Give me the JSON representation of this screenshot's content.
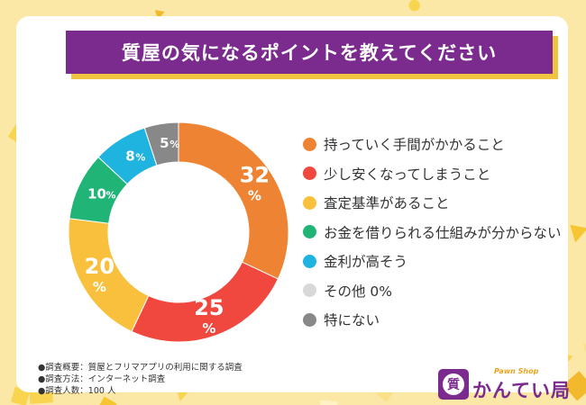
{
  "title": "質屋の気になるポイントを教えてください",
  "chart_data": {
    "type": "pie",
    "title": "質屋の気になるポイントを教えてください",
    "categories": [
      "持っていく手間がかかること",
      "少し安くなってしまうこと",
      "査定基準があること",
      "お金を借りられる仕組みが分からない",
      "金利が高そう",
      "その他 0%",
      "特にない"
    ],
    "values": [
      32,
      25,
      20,
      10,
      8,
      0,
      5
    ],
    "value_labels": [
      "32",
      "25",
      "20",
      "10",
      "8",
      "",
      "5"
    ],
    "unit": "%",
    "colors": [
      "#ee8433",
      "#f0483e",
      "#f9c03d",
      "#20b477",
      "#1fb3e0",
      "#d8d8d8",
      "#888888"
    ],
    "legend_position": "right"
  },
  "notes": [
    "●調査概要：質屋とフリマアプリの利用に関する調査",
    "●調査方法：インターネット調査",
    "●調査人数：100 人"
  ],
  "logo": {
    "mark": "質",
    "subtitle": "Pawn Shop",
    "name": "かんてい局"
  }
}
